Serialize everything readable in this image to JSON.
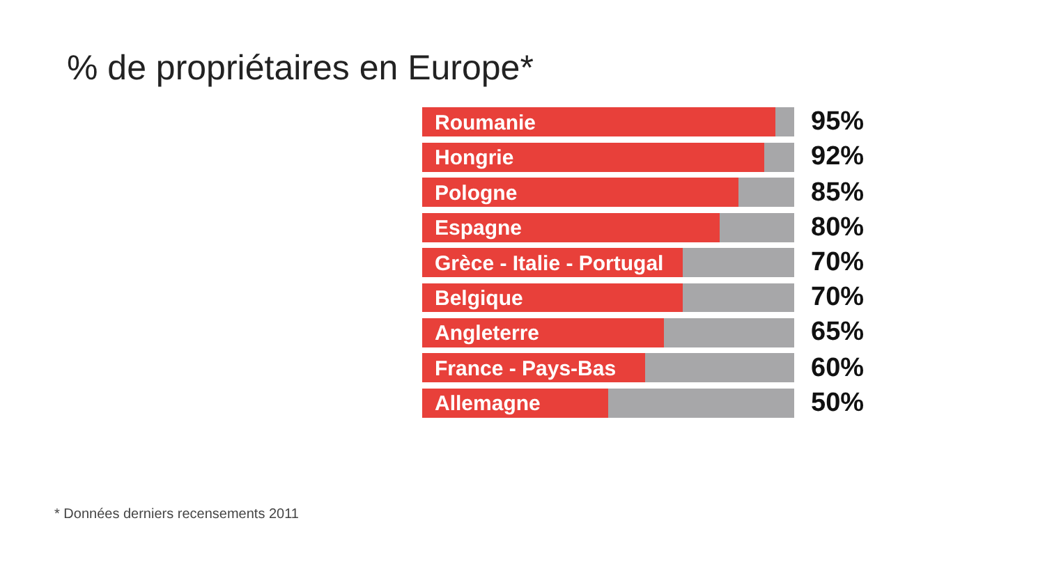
{
  "chart_data": {
    "type": "bar",
    "orientation": "horizontal",
    "stacked": true,
    "title": "% de propriétaires en Europe*",
    "categories": [
      "Roumanie",
      "Hongrie",
      "Pologne",
      "Espagne",
      "Grèce - Italie - Portugal",
      "Belgique",
      "Angleterre",
      "France - Pays-Bas",
      "Allemagne"
    ],
    "series": [
      {
        "color": "#e8403a",
        "values": [
          95,
          92,
          85,
          80,
          70,
          70,
          65,
          60,
          50
        ],
        "value_labels": [
          "95%",
          "92%",
          "85%",
          "80%",
          "70%",
          "70%",
          "65%",
          "60%",
          "50%"
        ]
      },
      {
        "color": "#a7a7a9",
        "values": [
          5,
          8,
          15,
          20,
          30,
          30,
          35,
          40,
          50
        ]
      }
    ],
    "xlim": [
      0,
      100
    ],
    "tick_labels": "y",
    "annotations": [
      "* Données derniers recensements 2011"
    ]
  }
}
